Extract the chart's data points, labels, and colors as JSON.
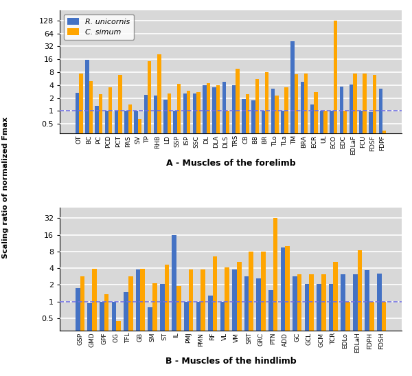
{
  "forelimb_labels": [
    "OT",
    "BC",
    "PC",
    "PCD",
    "PCT",
    "PAS",
    "SV",
    "TP",
    "RHB",
    "LD",
    "SSP",
    "ISP",
    "SSC",
    "DL",
    "DLA",
    "DLS",
    "TRS",
    "CB",
    "BB",
    "BR",
    "TLo",
    "TLa",
    "TM",
    "BRA",
    "ECR",
    "UL",
    "ECO",
    "EDC",
    "EDLaF",
    "FCU",
    "FDSF",
    "FDPF"
  ],
  "forelimb_blue": [
    2.7,
    15.5,
    1.3,
    1.0,
    1.0,
    1.0,
    1.0,
    2.4,
    2.3,
    1.85,
    1.0,
    2.6,
    2.6,
    4.0,
    3.5,
    4.8,
    4.0,
    1.9,
    1.8,
    1.0,
    3.3,
    1.0,
    42.0,
    4.8,
    1.4,
    1.0,
    1.0,
    3.7,
    4.1,
    1.0,
    0.95,
    3.3
  ],
  "forelimb_orange": [
    7.5,
    5.0,
    2.5,
    3.5,
    6.8,
    1.4,
    0.65,
    14.5,
    21.0,
    2.6,
    4.3,
    3.0,
    2.8,
    4.5,
    4.0,
    1.0,
    9.5,
    2.5,
    5.5,
    8.0,
    2.3,
    3.5,
    7.2,
    7.5,
    2.8,
    1.0,
    128.0,
    1.0,
    7.5,
    7.5,
    6.8,
    0.35
  ],
  "hindlimb_labels": [
    "GSP",
    "GMD",
    "GPF",
    "OG",
    "TFL",
    "GB",
    "SM",
    "ST",
    "IL",
    "PMJ",
    "PMN",
    "RF",
    "VL",
    "VM",
    "SRT",
    "GRC",
    "PTN",
    "ADD",
    "GC",
    "GCL",
    "GCM",
    "TCR",
    "EDLo",
    "EDLaH",
    "FDPH",
    "FDSH"
  ],
  "hindlimb_blue": [
    1.75,
    0.95,
    1.0,
    1.0,
    1.5,
    3.85,
    0.8,
    2.1,
    16.0,
    1.0,
    1.0,
    1.3,
    1.0,
    3.85,
    2.85,
    2.65,
    1.6,
    9.5,
    2.85,
    2.1,
    2.1,
    2.1,
    3.1,
    3.1,
    3.7,
    3.2
  ],
  "hindlimb_orange": [
    2.85,
    3.95,
    1.35,
    0.45,
    2.85,
    3.9,
    2.15,
    4.6,
    1.9,
    3.85,
    3.85,
    6.5,
    4.1,
    5.2,
    7.9,
    8.0,
    32.5,
    10.0,
    3.1,
    3.1,
    3.1,
    5.2,
    1.0,
    8.5,
    1.0,
    1.0
  ],
  "blue_color": "#4472C4",
  "orange_color": "#FFA500",
  "dashed_color": "#7070E0",
  "bg_color": "#D8D8D8",
  "grid_color": "#FFFFFF",
  "ylabel": "Scaling ratio of normalized Fmax",
  "xlabel_top": "A - Muscles of the forelimb",
  "xlabel_bot": "B - Muscles of the hindlimb",
  "legend_labels": [
    "R. unicornis",
    "C. simum"
  ],
  "forelimb_yticks": [
    0.5,
    1,
    2,
    4,
    8,
    16,
    32,
    64,
    128
  ],
  "forelimb_ylim": [
    0.3,
    220
  ],
  "hindlimb_yticks": [
    0.5,
    1,
    2,
    4,
    8,
    16,
    32
  ],
  "hindlimb_ylim": [
    0.3,
    50
  ]
}
